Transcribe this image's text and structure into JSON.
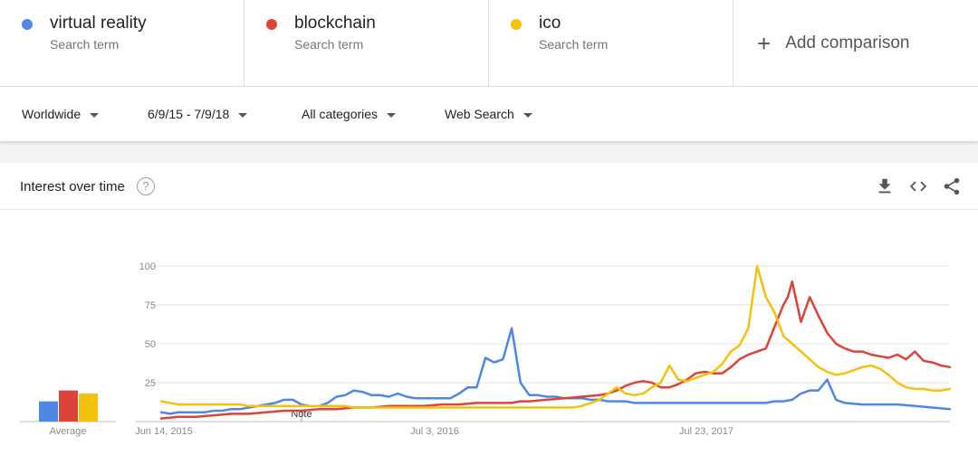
{
  "search_terms": [
    {
      "name": "virtual reality",
      "subtitle": "Search term",
      "color": "#4e87e6"
    },
    {
      "name": "blockchain",
      "subtitle": "Search term",
      "color": "#db4437"
    },
    {
      "name": "ico",
      "subtitle": "Search term",
      "color": "#f4c20d"
    }
  ],
  "add_comparison": {
    "icon": "plus-icon",
    "label": "Add comparison"
  },
  "filters": {
    "region": "Worldwide",
    "date_range": "6/9/15 - 7/9/18",
    "category": "All categories",
    "search_type": "Web Search"
  },
  "card": {
    "title": "Interest over time",
    "help_icon": "?",
    "icons": [
      "download-icon",
      "embed-icon",
      "share-icon"
    ]
  },
  "chart_data": {
    "type": "line",
    "y_ticks": [
      25,
      50,
      75,
      100
    ],
    "ylim": [
      0,
      100
    ],
    "x_tick_labels": [
      "Jun 14, 2015",
      "Jul 3, 2016",
      "Jul 23, 2017"
    ],
    "note_label": "Note",
    "grid": true,
    "average_label": "Average",
    "averages": [
      13,
      20,
      18
    ],
    "series": [
      {
        "name": "virtual reality",
        "color": "#4e87e6",
        "x": [
          0,
          2,
          4,
          6,
          8,
          10,
          12,
          14,
          16,
          18,
          20,
          22,
          24,
          26,
          28,
          30,
          32,
          34,
          36,
          38,
          40,
          42,
          44,
          46,
          48,
          50,
          52,
          54,
          56,
          58,
          60,
          62,
          64,
          66,
          68,
          70,
          72,
          74,
          76,
          78,
          80,
          82,
          84,
          86,
          88,
          90,
          92,
          94,
          96,
          98,
          100,
          102,
          104,
          106,
          108,
          110,
          112,
          114,
          116,
          118,
          120,
          122,
          124,
          126,
          128,
          130,
          132,
          134,
          136,
          138,
          140,
          142,
          144,
          146,
          148,
          150,
          152,
          154,
          156,
          160,
          164,
          168,
          172,
          176,
          180
        ],
        "values": [
          6,
          5,
          6,
          6,
          6,
          6,
          7,
          7,
          8,
          8,
          9,
          10,
          11,
          12,
          14,
          14,
          11,
          10,
          10,
          12,
          16,
          17,
          20,
          19,
          17,
          17,
          16,
          18,
          16,
          15,
          15,
          15,
          15,
          15,
          18,
          22,
          22,
          41,
          38,
          40,
          60,
          25,
          17,
          17,
          16,
          16,
          15,
          15,
          15,
          14,
          14,
          13,
          13,
          13,
          12,
          12,
          12,
          12,
          12,
          12,
          12,
          12,
          12,
          12,
          12,
          12,
          12,
          12,
          12,
          12,
          13,
          13,
          14,
          18,
          20,
          20,
          27,
          14,
          12,
          11,
          11,
          11,
          10,
          9,
          8
        ]
      },
      {
        "name": "blockchain",
        "color": "#db4437",
        "x": [
          0,
          4,
          8,
          12,
          16,
          20,
          24,
          28,
          32,
          36,
          40,
          44,
          48,
          52,
          56,
          60,
          64,
          68,
          72,
          76,
          80,
          82,
          84,
          88,
          92,
          96,
          100,
          102,
          104,
          106,
          108,
          110,
          112,
          114,
          116,
          118,
          120,
          122,
          124,
          126,
          128,
          130,
          132,
          134,
          136,
          138,
          140,
          142,
          143,
          144,
          146,
          148,
          150,
          152,
          154,
          156,
          158,
          160,
          162,
          164,
          166,
          168,
          170,
          172,
          174,
          176,
          178,
          180
        ],
        "values": [
          2,
          3,
          3,
          4,
          5,
          5,
          6,
          7,
          7,
          8,
          8,
          9,
          9,
          10,
          10,
          10,
          11,
          11,
          12,
          12,
          12,
          13,
          13,
          14,
          15,
          16,
          17,
          18,
          20,
          23,
          25,
          26,
          25,
          22,
          22,
          24,
          27,
          31,
          32,
          31,
          31,
          35,
          40,
          43,
          45,
          47,
          61,
          75,
          80,
          90,
          64,
          80,
          68,
          57,
          50,
          47,
          45,
          45,
          43,
          42,
          41,
          43,
          40,
          45,
          39,
          38,
          36,
          35
        ]
      },
      {
        "name": "ico",
        "color": "#f4c20d",
        "x": [
          0,
          2,
          4,
          6,
          8,
          10,
          12,
          14,
          16,
          18,
          20,
          22,
          24,
          26,
          28,
          30,
          32,
          34,
          36,
          38,
          40,
          42,
          44,
          46,
          48,
          50,
          52,
          54,
          56,
          58,
          60,
          62,
          64,
          66,
          68,
          70,
          72,
          74,
          76,
          78,
          80,
          82,
          84,
          86,
          88,
          90,
          92,
          94,
          96,
          98,
          100,
          102,
          104,
          106,
          108,
          110,
          112,
          114,
          116,
          118,
          120,
          122,
          124,
          126,
          128,
          130,
          132,
          134,
          136,
          138,
          140,
          142,
          144,
          146,
          148,
          150,
          152,
          154,
          156,
          158,
          160,
          162,
          164,
          166,
          168,
          170,
          172,
          174,
          176,
          178,
          180
        ],
        "values": [
          13,
          12,
          11,
          11,
          11,
          11,
          11,
          11,
          11,
          11,
          10,
          10,
          10,
          10,
          10,
          10,
          10,
          10,
          10,
          10,
          10,
          10,
          9,
          9,
          9,
          9,
          9,
          9,
          9,
          9,
          9,
          9,
          9,
          9,
          9,
          9,
          9,
          9,
          9,
          9,
          9,
          9,
          9,
          9,
          9,
          9,
          9,
          9,
          10,
          12,
          14,
          18,
          22,
          18,
          17,
          18,
          22,
          25,
          36,
          27,
          26,
          28,
          30,
          32,
          37,
          45,
          49,
          60,
          100,
          80,
          70,
          55,
          50,
          45,
          40,
          35,
          32,
          30,
          31,
          33,
          35,
          36,
          34,
          30,
          25,
          22,
          21,
          21,
          20,
          20,
          21
        ]
      }
    ]
  }
}
